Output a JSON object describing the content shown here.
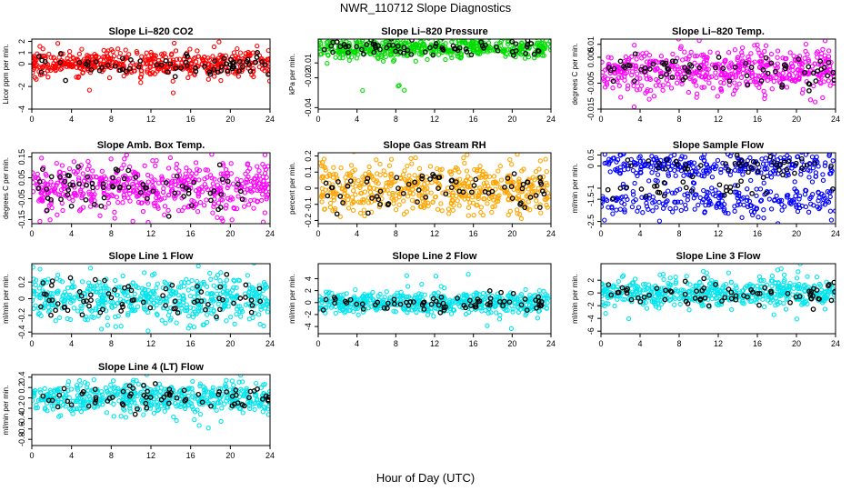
{
  "page": {
    "title": "NWR_110712  Slope Diagnostics",
    "xlabel": "Hour of Day (UTC)"
  },
  "chart_data": [
    {
      "type": "scatter",
      "title": "Slope Li–820 CO2",
      "ylabel": "Licor ppm per min.",
      "color": "#ff0000",
      "xlim": [
        0,
        24
      ],
      "ylim": [
        -4,
        2.2
      ],
      "xticks": [
        0,
        4,
        8,
        12,
        16,
        20,
        24
      ],
      "yticks": [
        -4,
        -2,
        0,
        1,
        2
      ],
      "spread": 0.55,
      "outlier": 3,
      "secondary": 0,
      "secondary_offset": 0
    },
    {
      "type": "scatter",
      "title": "Slope Li–820 Pressure",
      "ylabel": "kPa per min.",
      "color": "#00dd00",
      "xlim": [
        0,
        24
      ],
      "ylim": [
        -0.041,
        0.006
      ],
      "xticks": [
        0,
        4,
        8,
        12,
        16,
        20,
        24
      ],
      "yticks": [
        -0.04,
        -0.02,
        -0.01
      ],
      "spread": 0.0035,
      "outlier": 0.03,
      "secondary": 0,
      "secondary_offset": 0
    },
    {
      "type": "scatter",
      "title": "Slope Li–820 Temp.",
      "ylabel": "degrees C per min.",
      "color": "#ff00ff",
      "xlim": [
        0,
        24
      ],
      "ylim": [
        -0.015,
        0.012
      ],
      "xticks": [
        0,
        4,
        8,
        12,
        16,
        20,
        24
      ],
      "yticks": [
        -0.015,
        -0.005,
        0.005,
        0.01
      ],
      "spread": 0.004,
      "outlier": 0.013,
      "secondary": 0,
      "secondary_offset": 0
    },
    {
      "type": "scatter",
      "title": "Slope Amb. Box Temp.",
      "ylabel": "degrees C per min.",
      "color": "#ff00ff",
      "xlim": [
        0,
        24
      ],
      "ylim": [
        -0.17,
        0.17
      ],
      "xticks": [
        0,
        4,
        8,
        12,
        16,
        20,
        24
      ],
      "yticks": [
        -0.15,
        -0.05,
        0.05,
        0.15
      ],
      "spread": 0.06,
      "outlier": 0.16,
      "secondary": 0,
      "secondary_offset": 0
    },
    {
      "type": "scatter",
      "title": "Slope Gas Stream RH",
      "ylabel": "percent per min.",
      "color": "#ffa500",
      "xlim": [
        0,
        24
      ],
      "ylim": [
        -0.22,
        0.22
      ],
      "xticks": [
        0,
        4,
        8,
        12,
        16,
        20,
        24
      ],
      "yticks": [
        -0.2,
        -0.1,
        0.0,
        0.1,
        0.2
      ],
      "spread": 0.08,
      "outlier": 0.2,
      "secondary": 0,
      "secondary_offset": 0
    },
    {
      "type": "scatter",
      "title": "Slope Sample Flow",
      "ylabel": "ml/min per min.",
      "color": "#0000ff",
      "xlim": [
        0,
        24
      ],
      "ylim": [
        -2.6,
        0.6
      ],
      "xticks": [
        0,
        4,
        8,
        12,
        16,
        20,
        24
      ],
      "yticks": [
        -2.5,
        -1.5,
        -1.0,
        0.0,
        0.5
      ],
      "spread": 0.3,
      "outlier": 1.0,
      "secondary": 0.45,
      "secondary_offset": -1.6
    },
    {
      "type": "scatter",
      "title": "Slope Line 1 Flow",
      "ylabel": "ml/min per min.",
      "color": "#00e5ee",
      "xlim": [
        0,
        24
      ],
      "ylim": [
        -0.42,
        0.42
      ],
      "xticks": [
        0,
        4,
        8,
        12,
        16,
        20,
        24
      ],
      "yticks": [
        -0.4,
        -0.2,
        0.0,
        0.2
      ],
      "spread": 0.14,
      "outlier": 0.38,
      "secondary": 0,
      "secondary_offset": 0
    },
    {
      "type": "scatter",
      "title": "Slope Line 2 Flow",
      "ylabel": "ml/min per min.",
      "color": "#00e5ee",
      "xlim": [
        0,
        24
      ],
      "ylim": [
        -5.2,
        6.5
      ],
      "xticks": [
        0,
        4,
        8,
        12,
        16,
        20,
        24
      ],
      "yticks": [
        -4,
        -2,
        0,
        2,
        4
      ],
      "spread": 0.9,
      "outlier": 5.0,
      "secondary": 0,
      "secondary_offset": 0
    },
    {
      "type": "scatter",
      "title": "Slope Line 3 Flow",
      "ylabel": "ml/min per min.",
      "color": "#00e5ee",
      "xlim": [
        0,
        24
      ],
      "ylim": [
        -6.4,
        4.6
      ],
      "xticks": [
        0,
        4,
        8,
        12,
        16,
        20,
        24
      ],
      "yticks": [
        -6,
        -4,
        -2,
        0,
        2
      ],
      "spread": 1.1,
      "outlier": 5.5,
      "secondary": 0,
      "secondary_offset": 0
    },
    {
      "type": "scatter",
      "title": "Slope Line 4 (LT) Flow",
      "ylabel": "ml/min per min.",
      "color": "#00e5ee",
      "xlim": [
        0,
        24
      ],
      "ylim": [
        -0.92,
        0.45
      ],
      "xticks": [
        0,
        4,
        8,
        12,
        16,
        20,
        24
      ],
      "yticks": [
        -0.8,
        -0.6,
        -0.4,
        -0.2,
        0.0,
        0.2,
        0.4
      ],
      "spread": 0.15,
      "outlier": 0.6,
      "secondary": 0,
      "secondary_offset": 0
    }
  ]
}
